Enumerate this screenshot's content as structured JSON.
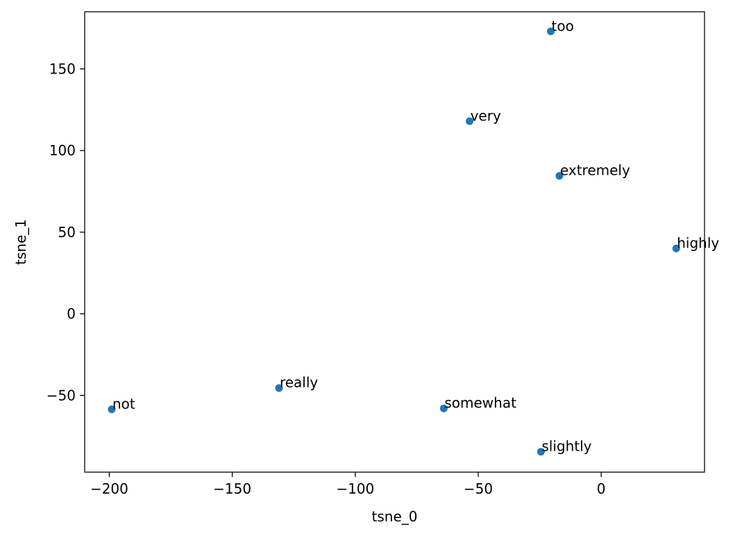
{
  "chart_data": {
    "type": "scatter",
    "title": "",
    "xlabel": "tsne_0",
    "ylabel": "tsne_1",
    "xlim": [
      -210,
      42
    ],
    "ylim": [
      -97,
      185
    ],
    "xticks": [
      -200,
      -150,
      -100,
      -50,
      0
    ],
    "yticks": [
      -50,
      0,
      50,
      100,
      150
    ],
    "grid": false,
    "marker_color": "#1f77b4",
    "points": [
      {
        "label": "too",
        "x": -20.5,
        "y": 173
      },
      {
        "label": "very",
        "x": -53.5,
        "y": 118
      },
      {
        "label": "extremely",
        "x": -17,
        "y": 84.5
      },
      {
        "label": "highly",
        "x": 30.5,
        "y": 40
      },
      {
        "label": "really",
        "x": -131,
        "y": -45.5
      },
      {
        "label": "not",
        "x": -199,
        "y": -58.5
      },
      {
        "label": "somewhat",
        "x": -64,
        "y": -58
      },
      {
        "label": "slightly",
        "x": -24.5,
        "y": -84.5
      }
    ]
  }
}
